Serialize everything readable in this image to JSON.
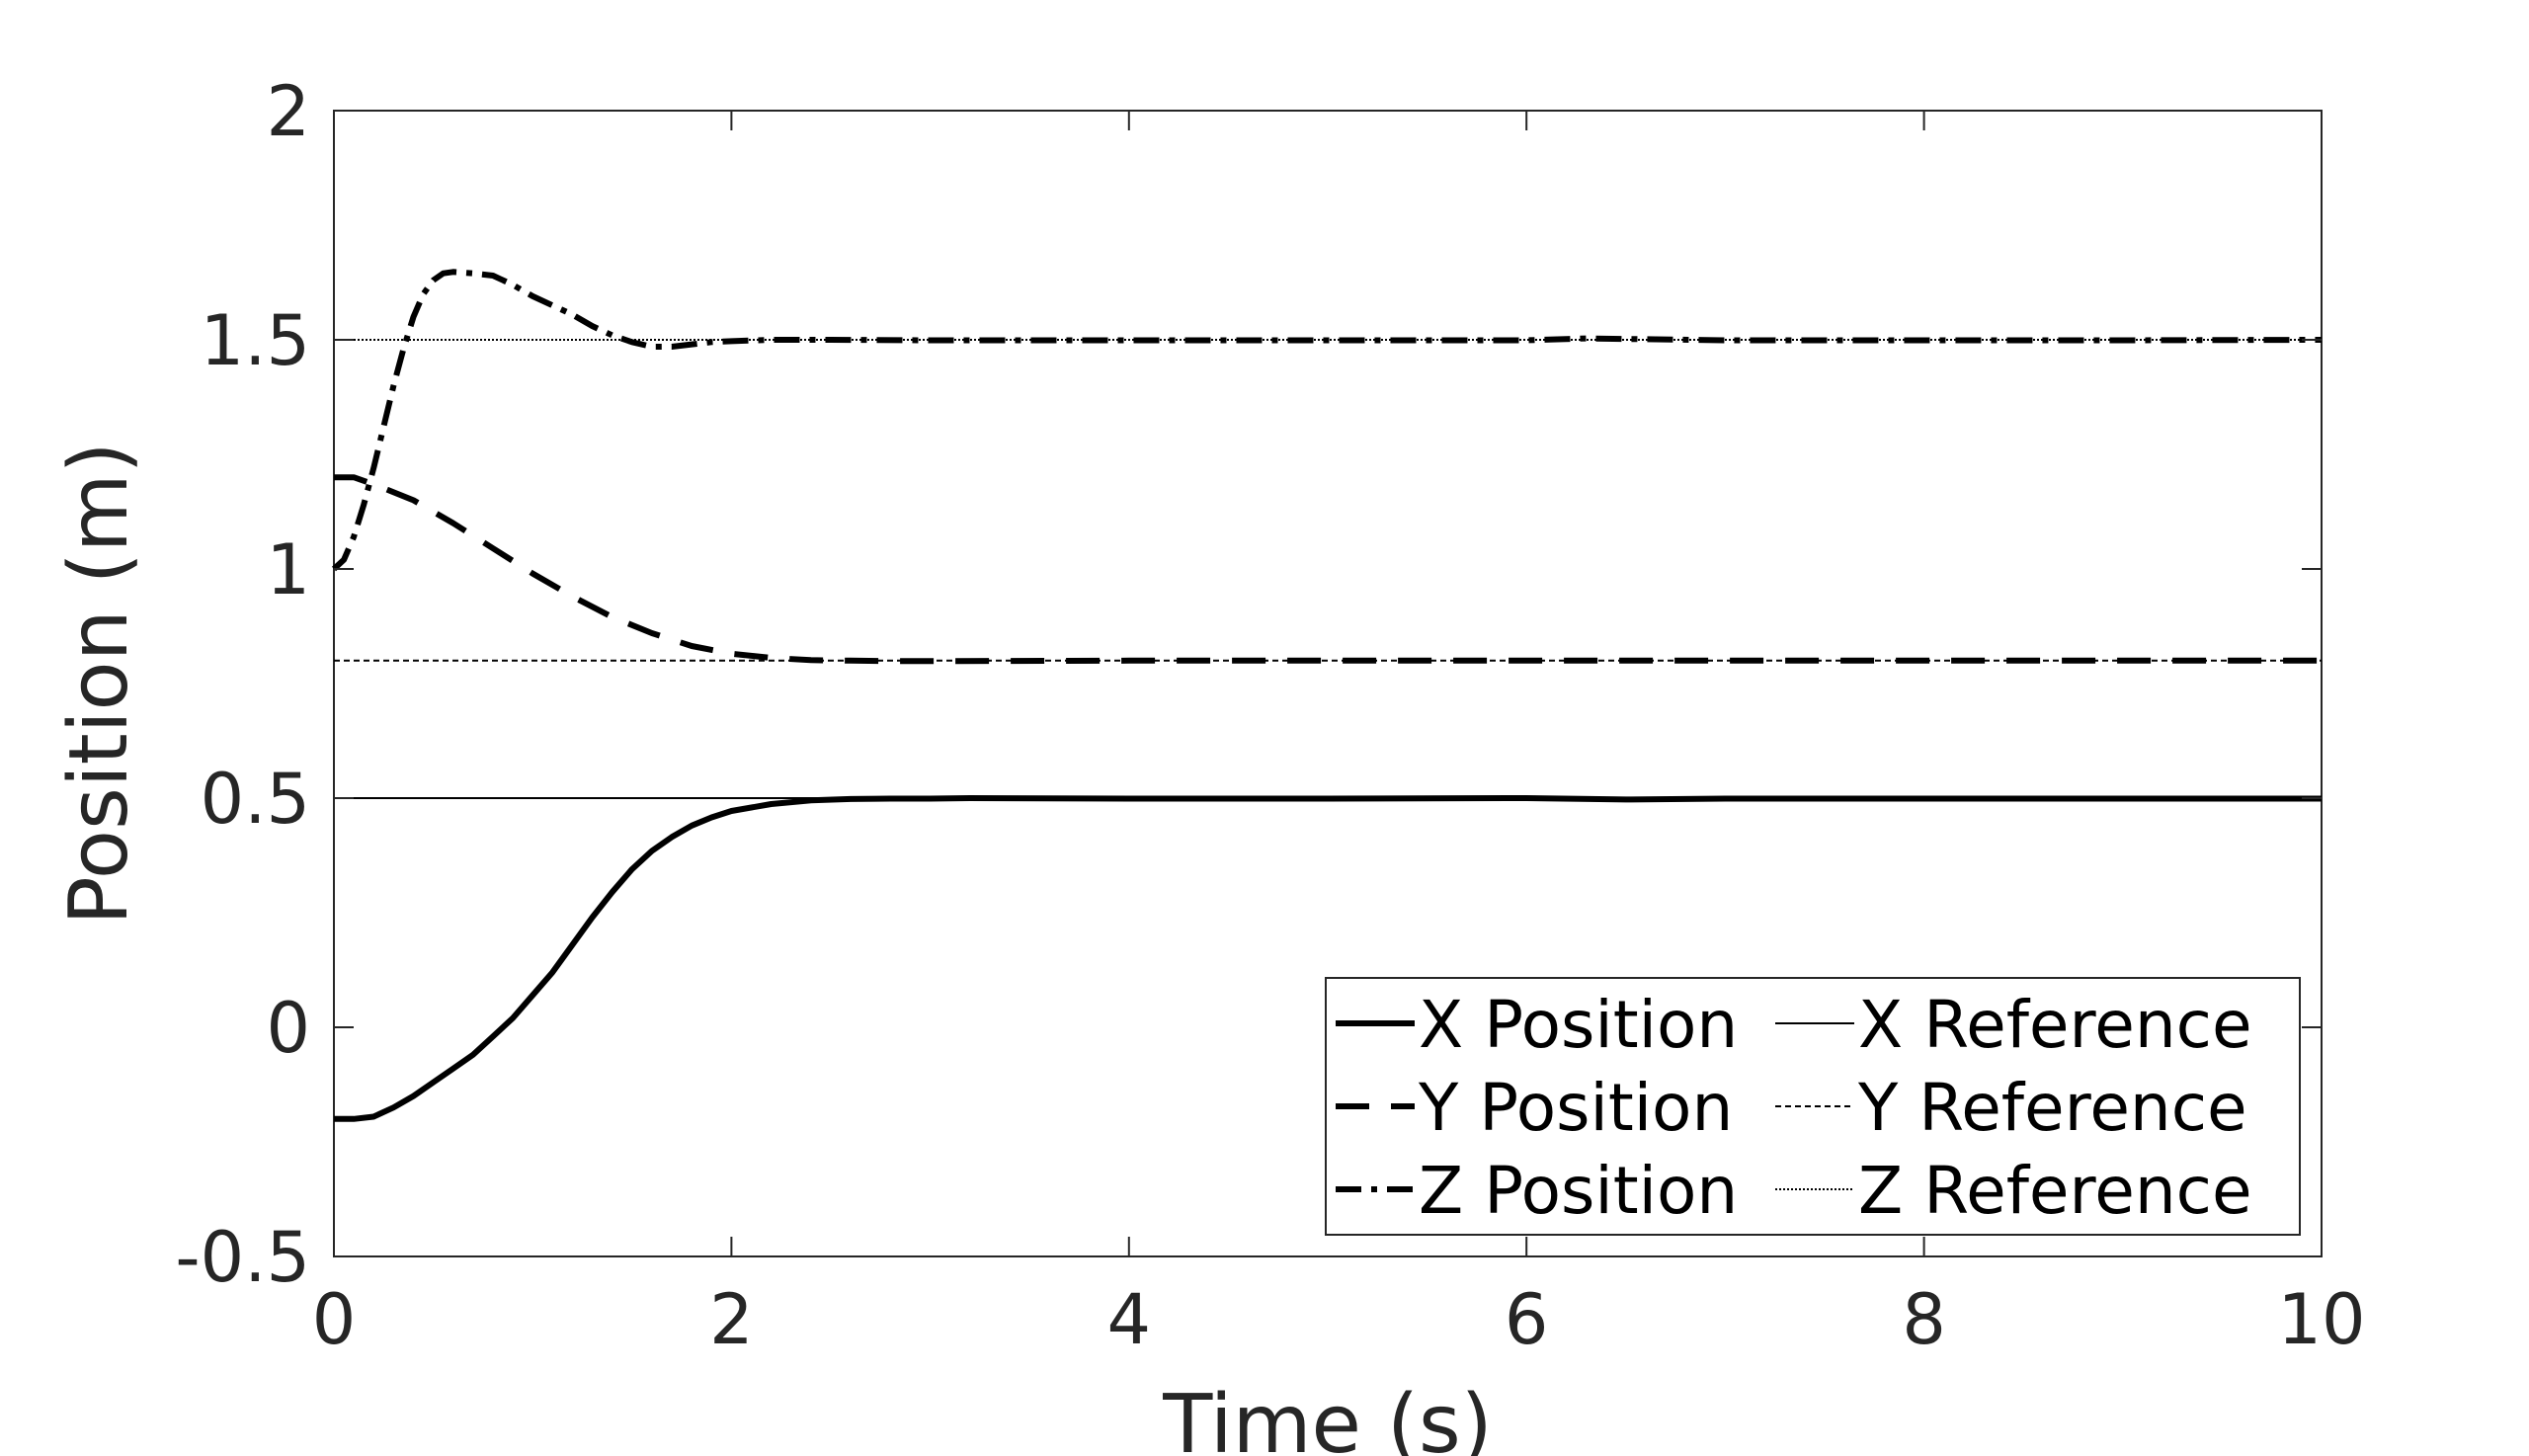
{
  "chart_data": {
    "type": "line",
    "title": "",
    "xlabel": "Time (s)",
    "ylabel": "Position (m)",
    "xlim": [
      0,
      10
    ],
    "ylim": [
      -0.5,
      2
    ],
    "xticks": [
      0,
      2,
      4,
      6,
      8,
      10
    ],
    "yticks": [
      -0.5,
      0,
      0.5,
      1,
      1.5,
      2
    ],
    "ytick_labels": [
      "-0.5",
      "0",
      "0.5",
      "1",
      "1.5",
      "2"
    ],
    "grid": false,
    "legend_position": "bottom-right",
    "legend_columns": 2,
    "series": [
      {
        "name": "X Position",
        "style": "solid-thick",
        "x": [
          0,
          0.1,
          0.2,
          0.3,
          0.4,
          0.5,
          0.6,
          0.7,
          0.8,
          0.9,
          1.0,
          1.1,
          1.2,
          1.3,
          1.4,
          1.5,
          1.6,
          1.7,
          1.8,
          1.9,
          2.0,
          2.2,
          2.4,
          2.6,
          2.8,
          3.0,
          3.2,
          4.0,
          5.0,
          6.0,
          6.5,
          7.0,
          8.0,
          9.0,
          10.0
        ],
        "y": [
          -0.2,
          -0.2,
          -0.195,
          -0.175,
          -0.15,
          -0.12,
          -0.09,
          -0.06,
          -0.02,
          0.02,
          0.07,
          0.12,
          0.18,
          0.24,
          0.295,
          0.345,
          0.385,
          0.415,
          0.44,
          0.458,
          0.472,
          0.487,
          0.495,
          0.498,
          0.499,
          0.499,
          0.5,
          0.499,
          0.499,
          0.5,
          0.497,
          0.499,
          0.499,
          0.499,
          0.499
        ]
      },
      {
        "name": "Y Position",
        "style": "dashed-thick",
        "x": [
          0,
          0.1,
          0.2,
          0.4,
          0.6,
          0.8,
          1.0,
          1.2,
          1.4,
          1.6,
          1.8,
          2.0,
          2.2,
          2.4,
          2.6,
          2.8,
          3.0,
          4.0,
          6.0,
          8.0,
          10.0
        ],
        "y": [
          1.2,
          1.2,
          1.185,
          1.15,
          1.1,
          1.045,
          0.99,
          0.94,
          0.895,
          0.86,
          0.832,
          0.815,
          0.806,
          0.801,
          0.8,
          0.799,
          0.799,
          0.8,
          0.8,
          0.8,
          0.8
        ]
      },
      {
        "name": "Z Position",
        "style": "dashdot-thick",
        "x": [
          0,
          0.05,
          0.1,
          0.15,
          0.2,
          0.25,
          0.3,
          0.35,
          0.4,
          0.45,
          0.5,
          0.55,
          0.6,
          0.7,
          0.8,
          0.9,
          1.0,
          1.1,
          1.2,
          1.3,
          1.4,
          1.5,
          1.6,
          1.7,
          1.8,
          1.9,
          2.0,
          2.2,
          2.5,
          3.0,
          4.0,
          5.0,
          6.0,
          6.3,
          7.0,
          8.0,
          9.0,
          10.0
        ],
        "y": [
          1.0,
          1.02,
          1.07,
          1.14,
          1.22,
          1.31,
          1.4,
          1.48,
          1.55,
          1.6,
          1.63,
          1.645,
          1.648,
          1.645,
          1.64,
          1.62,
          1.595,
          1.575,
          1.555,
          1.53,
          1.51,
          1.495,
          1.485,
          1.485,
          1.49,
          1.495,
          1.497,
          1.5,
          1.5,
          1.499,
          1.499,
          1.499,
          1.499,
          1.503,
          1.499,
          1.499,
          1.499,
          1.5
        ]
      },
      {
        "name": "X Reference",
        "style": "solid-thin",
        "x": [
          0,
          10
        ],
        "y": [
          0.5,
          0.5
        ]
      },
      {
        "name": "Y Reference",
        "style": "dashed-thin",
        "x": [
          0,
          10
        ],
        "y": [
          0.8,
          0.8
        ]
      },
      {
        "name": "Z Reference",
        "style": "dotted-thin",
        "x": [
          0,
          10
        ],
        "y": [
          1.5,
          1.5
        ]
      }
    ]
  }
}
